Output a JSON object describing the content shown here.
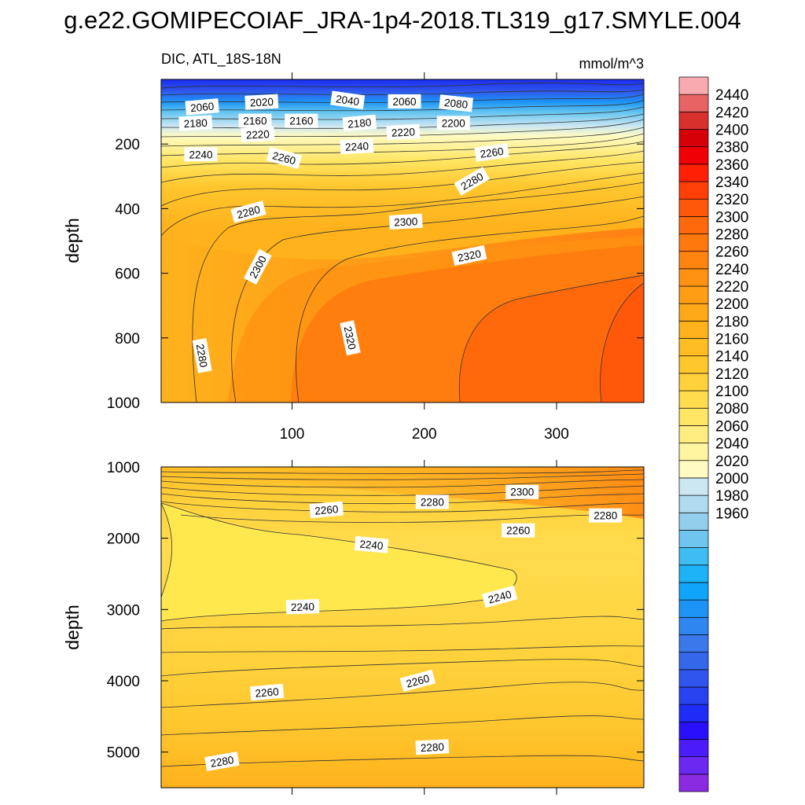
{
  "title": "g.e22.GOMIPECOIAF_JRA-1p4-2018.TL319_g17.SMYLE.004",
  "colors": {
    "colorbar": [
      "#8a2be2",
      "#6a28f0",
      "#4b1cf7",
      "#2a10fa",
      "#1f2bf6",
      "#2842f0",
      "#2f55ec",
      "#3467ea",
      "#3a78ec",
      "#2f86f0",
      "#1d94f5",
      "#10a5f8",
      "#1eb2f6",
      "#3ebdf2",
      "#6fc5ee",
      "#93cfec",
      "#b0dbee",
      "#cde7f2",
      "#fffbc2",
      "#fff5a0",
      "#ffed82",
      "#ffe664",
      "#ffdc4e",
      "#ffd23c",
      "#ffc72e",
      "#ffbd24",
      "#ffb21c",
      "#ffa818",
      "#ff9d14",
      "#ff9212",
      "#ff8510",
      "#ff780e",
      "#ff690c",
      "#ff580a",
      "#ff3e08",
      "#ff2006",
      "#f00006",
      "#d60008",
      "#d8302c",
      "#e86464",
      "#f9aab0"
    ],
    "contour_line": "#333333"
  },
  "chart_data": [
    {
      "type": "contour",
      "panel": "top",
      "left_label": "DIC, ATL_18S-18N",
      "right_label": "mmol/m^3",
      "ylabel": "depth",
      "xlabel": "",
      "xlim": [
        1,
        366
      ],
      "ylim": [
        1000,
        0
      ],
      "x_ticks": [
        100,
        200,
        300
      ],
      "y_ticks": [
        200,
        400,
        600,
        800,
        1000
      ],
      "grid": false,
      "contour_labels": [
        {
          "text": "2060",
          "x": 32,
          "y": 85,
          "rot": -5
        },
        {
          "text": "2020",
          "x": 77,
          "y": 70,
          "rot": -3
        },
        {
          "text": "2040",
          "x": 142,
          "y": 64,
          "rot": 8
        },
        {
          "text": "2060",
          "x": 185,
          "y": 68,
          "rot": 0
        },
        {
          "text": "2080",
          "x": 224,
          "y": 74,
          "rot": 6
        },
        {
          "text": "2180",
          "x": 27,
          "y": 135,
          "rot": -3
        },
        {
          "text": "2160",
          "x": 72,
          "y": 128,
          "rot": 0
        },
        {
          "text": "2160",
          "x": 107,
          "y": 128,
          "rot": 0
        },
        {
          "text": "2180",
          "x": 151,
          "y": 135,
          "rot": -5
        },
        {
          "text": "2200",
          "x": 222,
          "y": 135,
          "rot": 0
        },
        {
          "text": "2220",
          "x": 74,
          "y": 170,
          "rot": -3
        },
        {
          "text": "2220",
          "x": 184,
          "y": 163,
          "rot": -3
        },
        {
          "text": "2240",
          "x": 149,
          "y": 207,
          "rot": -3
        },
        {
          "text": "2240",
          "x": 31,
          "y": 232,
          "rot": 0
        },
        {
          "text": "2260",
          "x": 94,
          "y": 243,
          "rot": 15
        },
        {
          "text": "2260",
          "x": 251,
          "y": 226,
          "rot": -8
        },
        {
          "text": "2280",
          "x": 236,
          "y": 315,
          "rot": -30
        },
        {
          "text": "2280",
          "x": 67,
          "y": 410,
          "rot": -15
        },
        {
          "text": "2300",
          "x": 186,
          "y": 440,
          "rot": -3
        },
        {
          "text": "2300",
          "x": 74,
          "y": 580,
          "rot": -62
        },
        {
          "text": "2320",
          "x": 234,
          "y": 545,
          "rot": -12
        },
        {
          "text": "2320",
          "x": 144,
          "y": 800,
          "rot": 78
        },
        {
          "text": "2280",
          "x": 32,
          "y": 855,
          "rot": 80
        }
      ]
    },
    {
      "type": "contour",
      "panel": "bottom",
      "ylabel": "depth",
      "xlabel": "",
      "xlim": [
        1,
        366
      ],
      "ylim": [
        5500,
        1000
      ],
      "x_ticks": [
        100,
        200,
        300
      ],
      "y_ticks": [
        1000,
        2000,
        3000,
        4000,
        5000
      ],
      "grid": false,
      "contour_labels": [
        {
          "text": "2300",
          "x": 274,
          "y": 1350,
          "rot": 0
        },
        {
          "text": "2280",
          "x": 206,
          "y": 1490,
          "rot": 0
        },
        {
          "text": "2280",
          "x": 337,
          "y": 1680,
          "rot": 0
        },
        {
          "text": "2260",
          "x": 126,
          "y": 1600,
          "rot": -5
        },
        {
          "text": "2260",
          "x": 271,
          "y": 1890,
          "rot": 0
        },
        {
          "text": "2240",
          "x": 160,
          "y": 2090,
          "rot": 5
        },
        {
          "text": "2240",
          "x": 257,
          "y": 2820,
          "rot": -15
        },
        {
          "text": "2240",
          "x": 108,
          "y": 2960,
          "rot": -2
        },
        {
          "text": "2260",
          "x": 195,
          "y": 4000,
          "rot": -15
        },
        {
          "text": "2260",
          "x": 81,
          "y": 4160,
          "rot": -5
        },
        {
          "text": "2280",
          "x": 206,
          "y": 4930,
          "rot": -3
        },
        {
          "text": "2280",
          "x": 47,
          "y": 5130,
          "rot": -10
        }
      ]
    }
  ],
  "colorbar": {
    "labels": [
      "2440",
      "2420",
      "2400",
      "2380",
      "2360",
      "2340",
      "2320",
      "2300",
      "2280",
      "2260",
      "2240",
      "2220",
      "2200",
      "2180",
      "2160",
      "2140",
      "2120",
      "2100",
      "2080",
      "2060",
      "2040",
      "2020",
      "2000",
      "1980",
      "1960"
    ]
  }
}
